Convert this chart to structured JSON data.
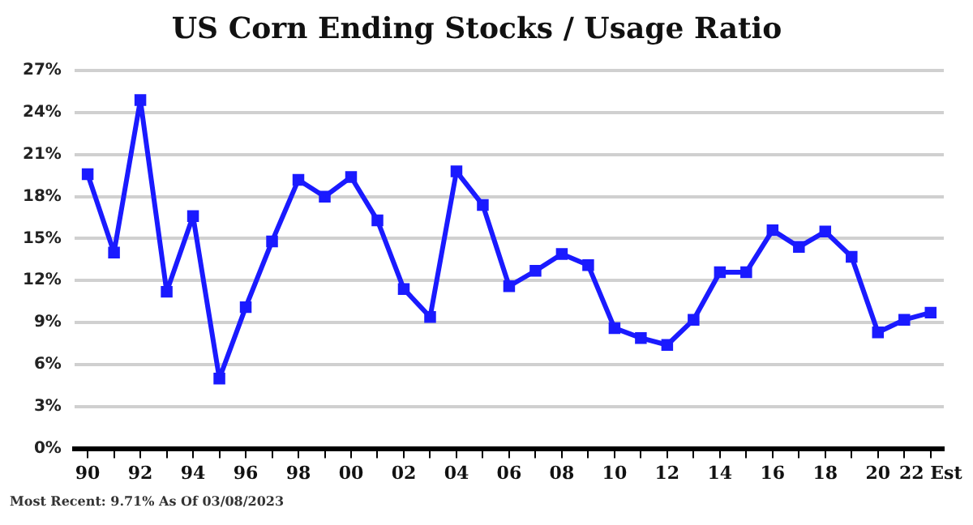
{
  "chart_data": {
    "type": "line",
    "title": "US Corn Ending Stocks / Usage Ratio",
    "categories": [
      "90",
      null,
      "92",
      null,
      "94",
      null,
      "96",
      null,
      "98",
      null,
      "00",
      null,
      "02",
      null,
      "04",
      null,
      "06",
      null,
      "08",
      null,
      "10",
      null,
      "12",
      null,
      "14",
      null,
      "16",
      null,
      "18",
      null,
      "20",
      null,
      "22 Est"
    ],
    "series": [
      {
        "color": "#1a1aff",
        "values": [
          19.6,
          14.0,
          24.9,
          11.2,
          16.6,
          5.0,
          10.1,
          14.8,
          19.2,
          18.0,
          19.4,
          16.3,
          11.4,
          9.4,
          19.8,
          17.4,
          11.6,
          12.7,
          13.9,
          13.1,
          8.6,
          7.9,
          7.4,
          9.2,
          12.6,
          12.6,
          15.6,
          14.4,
          15.5,
          13.7,
          8.3,
          9.2,
          9.71
        ]
      }
    ],
    "ylim": [
      0,
      27
    ],
    "yticks": [
      {
        "value": 0,
        "label": "0%"
      },
      {
        "value": 3,
        "label": "3%"
      },
      {
        "value": 6,
        "label": "6%"
      },
      {
        "value": 9,
        "label": "9%"
      },
      {
        "value": 12,
        "label": "12%"
      },
      {
        "value": 15,
        "label": "15%"
      },
      {
        "value": 18,
        "label": "18%"
      },
      {
        "value": 21,
        "label": "21%"
      },
      {
        "value": 24,
        "label": "24%"
      },
      {
        "value": 27,
        "label": "27%"
      }
    ],
    "grid": "y",
    "legend": false,
    "marker": "square",
    "line_style": "solid",
    "annotations": [
      "Most Recent: 9.71% As Of 03/08/2023"
    ]
  }
}
